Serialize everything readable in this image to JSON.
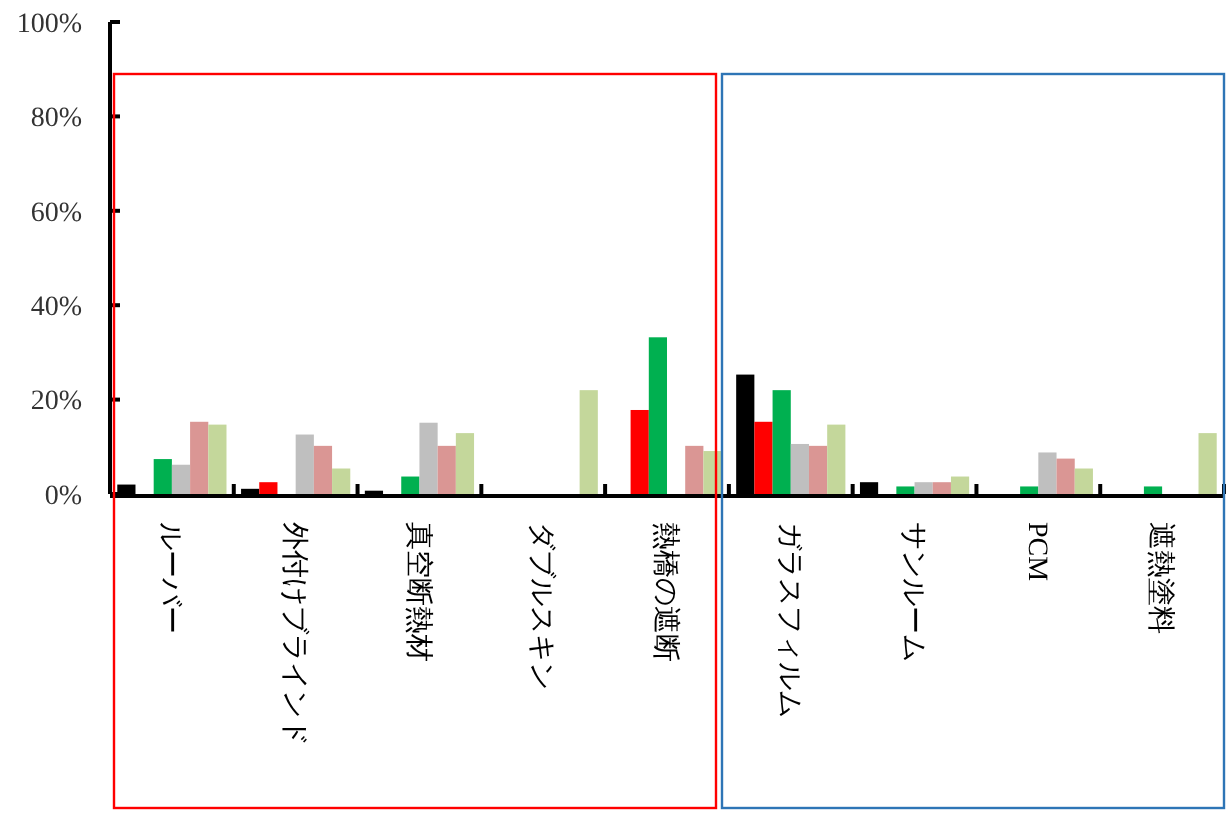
{
  "chart_data": {
    "type": "bar",
    "categories": [
      "ルーバー",
      "外付けブラインド",
      "真空断熱材",
      "ダブルスキン",
      "熱橋の遮断",
      "ガラスフィルム",
      "サンルーム",
      "PCM",
      "遮熱塗料"
    ],
    "series": [
      {
        "color": "#000000",
        "values": [
          2.0,
          1.1,
          0.7,
          0,
          0,
          25.3,
          2.5,
          0,
          0
        ]
      },
      {
        "color": "#ff0000",
        "values": [
          0,
          2.5,
          0,
          0,
          17.8,
          15.3,
          0,
          0,
          0
        ]
      },
      {
        "color": "#00b050",
        "values": [
          7.4,
          0,
          3.7,
          0,
          33.2,
          22.0,
          1.6,
          1.6,
          1.6
        ]
      },
      {
        "color": "#bfbfbf",
        "values": [
          6.2,
          12.6,
          15.1,
          0,
          0,
          10.6,
          2.5,
          8.8,
          0
        ]
      },
      {
        "color": "#da9694",
        "values": [
          15.3,
          10.2,
          10.2,
          0,
          10.2,
          10.2,
          2.5,
          7.5,
          0
        ]
      },
      {
        "color": "#c4d79b",
        "values": [
          14.7,
          5.4,
          12.9,
          22.0,
          9.1,
          14.7,
          3.7,
          5.4,
          12.9
        ]
      }
    ],
    "ylim": [
      0,
      100
    ],
    "yticks": [
      {
        "value": 0,
        "label": "0%"
      },
      {
        "value": 20,
        "label": "20%"
      },
      {
        "value": 40,
        "label": "40%"
      },
      {
        "value": 60,
        "label": "60%"
      },
      {
        "value": 80,
        "label": "80%"
      },
      {
        "value": 100,
        "label": "100%"
      }
    ],
    "grid": false
  }
}
